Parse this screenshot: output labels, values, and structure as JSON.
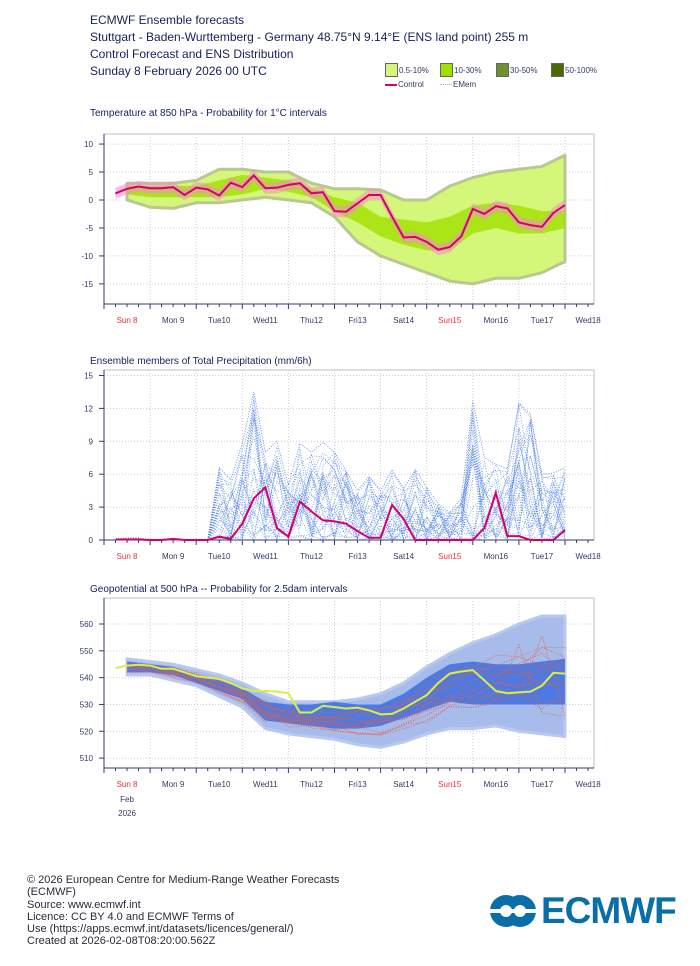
{
  "header": {
    "line1": "ECMWF Ensemble forecasts",
    "line2": "Stuttgart - Baden-Wurttemberg - Germany 48.75°N 9.14°E (ENS land point) 255 m",
    "line3": "Control Forecast and ENS Distribution",
    "line4": "Sunday 8 February 2026 00 UTC"
  },
  "legend": {
    "items": [
      {
        "label": "0.5-10%",
        "color": "#d4f77a"
      },
      {
        "label": "10-30%",
        "color": "#a0e000"
      },
      {
        "label": "30-50%",
        "color": "#6f9030"
      },
      {
        "label": "50-100%",
        "color": "#4a6a00"
      }
    ],
    "control_label": "Control",
    "control_color": "#d4006e",
    "emem_label": "EMem",
    "emem_color": "#f48cc8"
  },
  "x_axis": {
    "day_labels": [
      "Sun 8",
      "Mon 9",
      "Tue10",
      "Wed11",
      "Thu12",
      "Fri13",
      "Sat14",
      "Sun15",
      "Mon16",
      "Tue17",
      "Wed18"
    ],
    "weekend_labels": [
      "Sun 8",
      "Sun15"
    ],
    "month_label": "Feb",
    "year_label": "2026",
    "weekend_color": "#e8303a"
  },
  "chart_data": [
    {
      "type": "area",
      "title": "Temperature at 850 hPa - Probability for 1°C intervals",
      "xlabel": "",
      "ylabel": "",
      "ylim": [
        -18.6,
        11.8
      ],
      "yticks": [
        10,
        5,
        0,
        -5,
        -10,
        -15
      ],
      "grid": true,
      "step_hours": [
        6,
        12,
        18,
        24,
        30,
        36,
        42,
        48,
        54,
        60,
        66,
        72,
        78,
        84,
        90,
        96,
        102,
        108,
        114,
        120,
        126,
        132,
        138,
        144,
        150,
        156,
        162,
        168,
        174,
        180,
        186,
        192,
        198,
        204,
        210,
        216,
        222,
        228,
        234,
        240
      ],
      "control": [
        1.2,
        2.0,
        2.4,
        2.1,
        2.1,
        2.3,
        0.9,
        2.2,
        1.9,
        0.8,
        3.1,
        2.3,
        4.4,
        2.1,
        2.2,
        2.7,
        3.0,
        1.2,
        1.4,
        -2.0,
        -2.1,
        -0.6,
        0.9,
        0.9,
        -3.0,
        -6.7,
        -6.6,
        -7.5,
        -8.9,
        -8.4,
        -6.5,
        -1.6,
        -2.5,
        -1.1,
        -1.5,
        -4.0,
        -4.5,
        -4.8,
        -2.3,
        -0.9
      ],
      "band_hours": [
        12,
        24,
        36,
        48,
        60,
        72,
        84,
        96,
        108,
        120,
        132,
        144,
        156,
        168,
        180,
        192,
        204,
        216,
        228,
        240
      ],
      "band_0_5_10_low": [
        0,
        -1.3,
        -1.5,
        -0.5,
        -0.5,
        0,
        0.5,
        0,
        -0.5,
        -3,
        -7.5,
        -10,
        -11.5,
        -13,
        -14.5,
        -15,
        -14,
        -14,
        -13,
        -11
      ],
      "band_0_5_10_high": [
        3,
        3,
        3,
        3.5,
        5.5,
        5.5,
        5,
        5,
        3,
        2,
        2,
        1.8,
        0,
        0,
        2.5,
        4,
        5,
        5.5,
        6,
        8
      ],
      "band_10_30_low": [
        1,
        0.5,
        0.5,
        0.5,
        0.5,
        1,
        2,
        1.5,
        0.5,
        -2,
        -4,
        -6.5,
        -8,
        -9,
        -9,
        -6,
        -5,
        -6,
        -6,
        -5
      ],
      "band_10_30_high": [
        2.5,
        2.5,
        2.5,
        2.5,
        3.5,
        4.5,
        4,
        3.5,
        2,
        0.5,
        -0.5,
        -3,
        -3.5,
        -4,
        -3,
        -1,
        -0.5,
        -1,
        -2,
        -2
      ]
    },
    {
      "type": "line",
      "title": "Ensemble members of Total Precipitation (mm/6h)",
      "xlabel": "",
      "ylabel": "",
      "ylim": [
        0,
        15.5
      ],
      "yticks": [
        15,
        12,
        9,
        6,
        3,
        0
      ],
      "grid": true,
      "step_hours": [
        6,
        12,
        18,
        24,
        30,
        36,
        42,
        48,
        54,
        60,
        66,
        72,
        78,
        84,
        90,
        96,
        102,
        108,
        114,
        120,
        126,
        132,
        138,
        144,
        150,
        156,
        162,
        168,
        174,
        180,
        186,
        192,
        198,
        204,
        210,
        216,
        222,
        228,
        234,
        240
      ],
      "control": [
        0.05,
        0.05,
        0.05,
        0,
        0,
        0.1,
        0,
        0,
        0,
        0.3,
        0.1,
        1.5,
        3.8,
        4.8,
        1.1,
        0.3,
        3.5,
        2.6,
        1.8,
        1.7,
        1.5,
        0.8,
        0.2,
        0.2,
        3.2,
        1.9,
        0,
        0,
        0,
        0,
        0,
        0,
        1.1,
        4.3,
        0.35,
        0.35,
        0,
        0,
        0,
        0.9
      ],
      "ens_max": [
        0.1,
        0.2,
        0.2,
        0,
        0,
        0.1,
        0,
        0,
        0,
        6.6,
        5.5,
        8.8,
        13.5,
        8,
        9,
        5,
        8.8,
        8,
        8.9,
        8,
        6.3,
        4.5,
        5.8,
        4.5,
        6.4,
        4.7,
        6.4,
        4.8,
        3.3,
        2.5,
        3.8,
        12.7,
        7.5,
        6.9,
        6.5,
        12.5,
        11.5,
        6,
        6.1,
        6.6
      ]
    },
    {
      "type": "area",
      "title": "Geopotential at 500 hPa -- Probability for 2.5dam intervals",
      "xlabel": "",
      "ylabel": "",
      "ylim": [
        506.3,
        569.7
      ],
      "yticks": [
        560,
        550,
        540,
        530,
        520,
        510
      ],
      "grid": true,
      "step_hours": [
        6,
        12,
        18,
        24,
        30,
        36,
        42,
        48,
        54,
        60,
        66,
        72,
        78,
        84,
        90,
        96,
        102,
        108,
        114,
        120,
        126,
        132,
        138,
        144,
        150,
        156,
        162,
        168,
        174,
        180,
        186,
        192,
        198,
        204,
        210,
        216,
        222,
        228,
        234,
        240
      ],
      "control": [
        543.5,
        544.5,
        544.8,
        544.5,
        543.3,
        543.3,
        542,
        540.5,
        540,
        539.5,
        538,
        536,
        535,
        535,
        534.8,
        534.2,
        527,
        527,
        529.5,
        529,
        528.5,
        528.8,
        527.8,
        526.3,
        526.5,
        528.5,
        531,
        533.5,
        538,
        541.5,
        542.3,
        542.8,
        539,
        535,
        534.2,
        534.5,
        534.8,
        537,
        541.8,
        541.5
      ],
      "band_hours": [
        12,
        24,
        36,
        48,
        60,
        72,
        84,
        96,
        108,
        120,
        132,
        144,
        156,
        168,
        180,
        192,
        204,
        216,
        228,
        240
      ],
      "outer_low": [
        541,
        541,
        539,
        537,
        533,
        529,
        521,
        519,
        518,
        517,
        515,
        514,
        516,
        519,
        521,
        521,
        522,
        520,
        519,
        518
      ],
      "outer_high": [
        547,
        546,
        545,
        543,
        541,
        538,
        534,
        531,
        531,
        531,
        532,
        534,
        538,
        544,
        549,
        553,
        556,
        560,
        563,
        563
      ],
      "inner_low": [
        542,
        542,
        541,
        538,
        535,
        532,
        524,
        523,
        522,
        521,
        521,
        522,
        525,
        528,
        531,
        530,
        530,
        530,
        530,
        530
      ],
      "inner_high": [
        546,
        545,
        544,
        541,
        539,
        536,
        531,
        530,
        530,
        531,
        530,
        530,
        534,
        540,
        545,
        546,
        545,
        545,
        546,
        547
      ],
      "colors": {
        "outer": "#a8bcec",
        "inner": "#3d6fe0",
        "members": "#f05a3a",
        "control": "#d8f040"
      }
    }
  ],
  "footer": {
    "line1": "© 2026 European Centre for Medium-Range Weather Forecasts",
    "line2": "(ECMWF)",
    "line3": "Source: www.ecmwf.int",
    "line4": "Licence: CC BY 4.0 and ECMWF Terms of",
    "line5": "Use (https://apps.ecmwf.int/datasets/licences/general/)",
    "line6": "Created at 2026-02-08T08:20:00.562Z"
  },
  "logo": {
    "text": "ECMWF",
    "color": "#0a6ea8"
  }
}
